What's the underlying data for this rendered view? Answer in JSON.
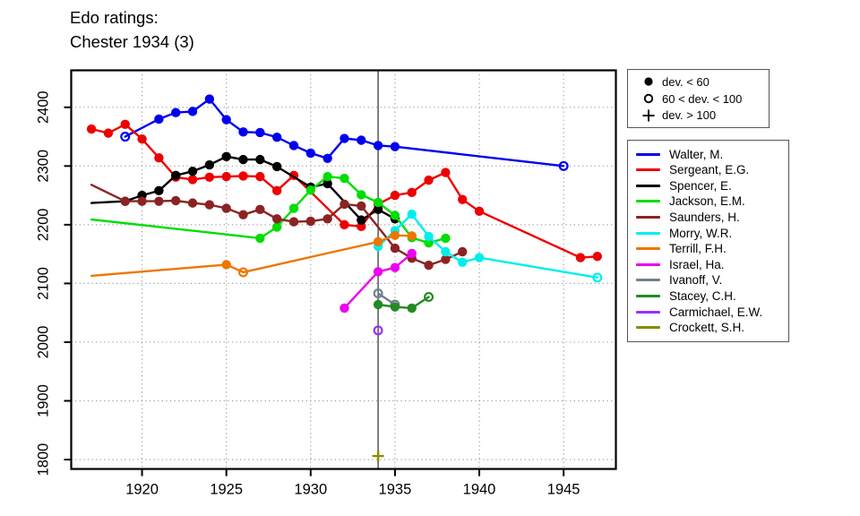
{
  "title": {
    "line1": "Edo ratings:",
    "line2": "Chester 1934 (3)"
  },
  "symbol_legend": {
    "items": [
      {
        "icon": "filled-circle",
        "label": "dev. < 60"
      },
      {
        "icon": "open-circle",
        "label": "60 < dev. < 100"
      },
      {
        "icon": "plus",
        "label": "dev. > 100"
      }
    ]
  },
  "chart_data": {
    "type": "line",
    "title": "Edo ratings: Chester 1934 (3)",
    "xlabel": "",
    "ylabel": "",
    "grid": true,
    "legend_position": "right",
    "x_ticks": [
      1920,
      1925,
      1930,
      1935,
      1940,
      1945
    ],
    "y_ticks": [
      1800,
      1900,
      2000,
      2100,
      2200,
      2300,
      2400
    ],
    "xlim": [
      1915.8,
      1948.1
    ],
    "ylim": [
      1784,
      2463
    ],
    "event_year": 1934,
    "dev_codes": {
      "f": "dev. < 60",
      "o": "60 < dev. < 100",
      "p": "dev. > 100",
      "null": "line vertex, no symbol"
    },
    "series": [
      {
        "name": "Walter, M.",
        "color": "#0000EE",
        "points": [
          [
            1919,
            2350,
            "o"
          ],
          [
            1921,
            2380,
            "f"
          ],
          [
            1922,
            2391,
            "f"
          ],
          [
            1923,
            2393,
            "f"
          ],
          [
            1924,
            2414,
            "f"
          ],
          [
            1925,
            2379,
            "f"
          ],
          [
            1926,
            2358,
            "f"
          ],
          [
            1927,
            2357,
            "f"
          ],
          [
            1928,
            2349,
            "f"
          ],
          [
            1929,
            2335,
            "f"
          ],
          [
            1930,
            2322,
            "f"
          ],
          [
            1931,
            2313,
            "f"
          ],
          [
            1932,
            2347,
            "f"
          ],
          [
            1933,
            2344,
            "f"
          ],
          [
            1934,
            2335,
            "f"
          ],
          [
            1935,
            2333,
            "f"
          ],
          [
            1945,
            2300,
            "o"
          ]
        ]
      },
      {
        "name": "Sergeant, E.G.",
        "color": "#EE0000",
        "points": [
          [
            1917,
            2363,
            "f"
          ],
          [
            1918,
            2356,
            "f"
          ],
          [
            1919,
            2371,
            "f"
          ],
          [
            1920,
            2346,
            "f"
          ],
          [
            1921,
            2314,
            "f"
          ],
          [
            1922,
            2281,
            "f"
          ],
          [
            1923,
            2277,
            "f"
          ],
          [
            1924,
            2281,
            "f"
          ],
          [
            1925,
            2282,
            "f"
          ],
          [
            1926,
            2283,
            "f"
          ],
          [
            1927,
            2282,
            "f"
          ],
          [
            1928,
            2258,
            "f"
          ],
          [
            1929,
            2284,
            "f"
          ],
          [
            1932,
            2200,
            "f"
          ],
          [
            1933,
            2197,
            "f"
          ],
          [
            1934,
            2235,
            "f"
          ],
          [
            1935,
            2250,
            "f"
          ],
          [
            1936,
            2255,
            "f"
          ],
          [
            1937,
            2276,
            "f"
          ],
          [
            1938,
            2289,
            "f"
          ],
          [
            1939,
            2243,
            "f"
          ],
          [
            1940,
            2223,
            "f"
          ],
          [
            1946,
            2144,
            "f"
          ],
          [
            1947,
            2146,
            "f"
          ]
        ]
      },
      {
        "name": "Spencer, E.",
        "color": "#000000",
        "points": [
          [
            1917,
            2237,
            null
          ],
          [
            1919,
            2240,
            "f"
          ],
          [
            1920,
            2250,
            "f"
          ],
          [
            1921,
            2258,
            "f"
          ],
          [
            1922,
            2284,
            "f"
          ],
          [
            1923,
            2291,
            "f"
          ],
          [
            1924,
            2302,
            "f"
          ],
          [
            1925,
            2316,
            "f"
          ],
          [
            1926,
            2311,
            "f"
          ],
          [
            1927,
            2311,
            "f"
          ],
          [
            1928,
            2299,
            "f"
          ],
          [
            1930,
            2264,
            "f"
          ],
          [
            1931,
            2270,
            "f"
          ],
          [
            1933,
            2208,
            "f"
          ],
          [
            1934,
            2226,
            "f"
          ],
          [
            1935,
            2210,
            "f"
          ]
        ]
      },
      {
        "name": "Jackson, E.M.",
        "color": "#00DD00",
        "points": [
          [
            1917,
            2209,
            null
          ],
          [
            1927,
            2177,
            "f"
          ],
          [
            1928,
            2196,
            "f"
          ],
          [
            1929,
            2228,
            "f"
          ],
          [
            1930,
            2259,
            "f"
          ],
          [
            1931,
            2282,
            "f"
          ],
          [
            1932,
            2279,
            "f"
          ],
          [
            1933,
            2251,
            "f"
          ],
          [
            1934,
            2238,
            "f"
          ],
          [
            1935,
            2216,
            "f"
          ],
          [
            1936,
            2178,
            "f"
          ],
          [
            1937,
            2169,
            "f"
          ],
          [
            1938,
            2177,
            "f"
          ]
        ]
      },
      {
        "name": "Saunders, H.",
        "color": "#8B2323",
        "points": [
          [
            1917,
            2268,
            null
          ],
          [
            1919,
            2240,
            "f"
          ],
          [
            1920,
            2240,
            "f"
          ],
          [
            1921,
            2240,
            "f"
          ],
          [
            1922,
            2241,
            "f"
          ],
          [
            1923,
            2237,
            "f"
          ],
          [
            1924,
            2234,
            "f"
          ],
          [
            1925,
            2228,
            "f"
          ],
          [
            1926,
            2217,
            "f"
          ],
          [
            1927,
            2226,
            "f"
          ],
          [
            1928,
            2210,
            "f"
          ],
          [
            1929,
            2205,
            "f"
          ],
          [
            1930,
            2206,
            "f"
          ],
          [
            1931,
            2210,
            "f"
          ],
          [
            1932,
            2235,
            "f"
          ],
          [
            1933,
            2232,
            "f"
          ],
          [
            1935,
            2160,
            "f"
          ],
          [
            1936,
            2143,
            "f"
          ],
          [
            1937,
            2131,
            "f"
          ],
          [
            1938,
            2141,
            "f"
          ],
          [
            1939,
            2154,
            "f"
          ]
        ]
      },
      {
        "name": "Morry, W.R.",
        "color": "#00EEEE",
        "points": [
          [
            1934,
            2163,
            "f"
          ],
          [
            1935,
            2190,
            "f"
          ],
          [
            1936,
            2218,
            "f"
          ],
          [
            1937,
            2180,
            "f"
          ],
          [
            1938,
            2154,
            "f"
          ],
          [
            1939,
            2136,
            "f"
          ],
          [
            1940,
            2144,
            "f"
          ],
          [
            1947,
            2110,
            "o"
          ]
        ]
      },
      {
        "name": "Terrill, F.H.",
        "color": "#EE7600",
        "points": [
          [
            1917,
            2113,
            null
          ],
          [
            1925,
            2132,
            "f"
          ],
          [
            1926,
            2119,
            "o"
          ],
          [
            1934,
            2171,
            "f"
          ],
          [
            1935,
            2182,
            "f"
          ],
          [
            1936,
            2181,
            "f"
          ]
        ]
      },
      {
        "name": "Israel, Ha.",
        "color": "#EE00EE",
        "points": [
          [
            1932,
            2058,
            "f"
          ],
          [
            1934,
            2120,
            "f"
          ],
          [
            1935,
            2127,
            "f"
          ],
          [
            1936,
            2151,
            "f"
          ]
        ]
      },
      {
        "name": "Ivanoff, V.",
        "color": "#708090",
        "points": [
          [
            1934,
            2083,
            "o"
          ],
          [
            1935,
            2064,
            "o"
          ]
        ]
      },
      {
        "name": "Stacey, C.H.",
        "color": "#228B22",
        "points": [
          [
            1934,
            2064,
            "f"
          ],
          [
            1935,
            2060,
            "f"
          ],
          [
            1936,
            2058,
            "f"
          ],
          [
            1937,
            2077,
            "o"
          ]
        ]
      },
      {
        "name": "Carmichael, E.W.",
        "color": "#9B30FF",
        "points": [
          [
            1934,
            2020,
            "o"
          ]
        ]
      },
      {
        "name": "Crockett, S.H.",
        "color": "#8B8B00",
        "points": [
          [
            1934,
            1806,
            "p"
          ]
        ]
      }
    ]
  }
}
